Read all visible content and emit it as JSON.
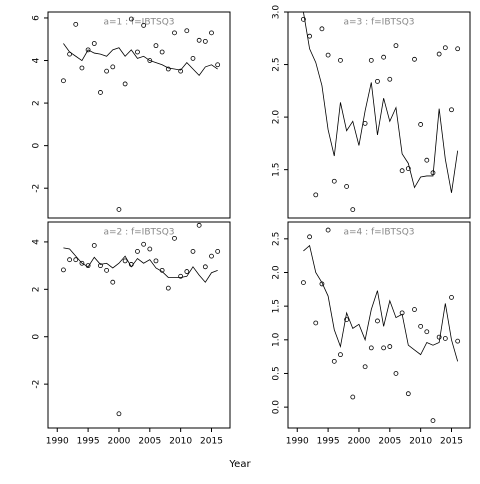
{
  "x_label": "Year",
  "chart_data": [
    {
      "type": "scatter",
      "title": "a=1  :  f=IBTSQ3",
      "xlim": [
        1988.5,
        2018
      ],
      "ylim": [
        -3.4,
        6.28
      ],
      "yticks": [
        -2,
        0,
        2,
        4,
        6
      ],
      "points": {
        "x": [
          1991,
          1992,
          1993,
          1994,
          1995,
          1996,
          1997,
          1998,
          1999,
          2000,
          2001,
          2002,
          2003,
          2004,
          2005,
          2006,
          2007,
          2008,
          2009,
          2010,
          2011,
          2012,
          2013,
          2014,
          2015,
          2016
        ],
        "values": [
          3.05,
          4.3,
          5.7,
          3.65,
          4.5,
          4.8,
          2.5,
          3.5,
          3.7,
          -3.0,
          2.9,
          5.95,
          4.4,
          5.65,
          4.0,
          4.7,
          4.4,
          3.6,
          5.3,
          3.5,
          5.4,
          4.1,
          4.95,
          4.9,
          5.3,
          3.8
        ]
      },
      "fit": {
        "x": [
          1991,
          1992,
          1993,
          1994,
          1995,
          1996,
          1997,
          1998,
          1999,
          2000,
          2001,
          2002,
          2003,
          2004,
          2005,
          2006,
          2007,
          2008,
          2009,
          2010,
          2011,
          2012,
          2013,
          2014,
          2015,
          2016
        ],
        "values": [
          4.8,
          4.4,
          4.2,
          4.0,
          4.5,
          4.35,
          4.3,
          4.2,
          4.5,
          4.6,
          4.2,
          4.5,
          4.1,
          4.2,
          4.0,
          3.9,
          3.8,
          3.65,
          3.6,
          3.55,
          3.9,
          3.6,
          3.3,
          3.7,
          3.8,
          3.6
        ]
      }
    },
    {
      "type": "scatter",
      "title": "a=3  :  f=IBTSQ3",
      "xlim": [
        1988.5,
        2018
      ],
      "ylim": [
        1.04,
        3.0
      ],
      "yticks": [
        1.5,
        {
          "value": 2,
          "label": "2.0"
        },
        2.5,
        {
          "value": 3,
          "label": "3.0"
        }
      ],
      "points": {
        "x": [
          1991,
          1992,
          1993,
          1994,
          1995,
          1996,
          1997,
          1998,
          1999,
          2001,
          2002,
          2003,
          2004,
          2005,
          2006,
          2007,
          2008,
          2009,
          2010,
          2011,
          2012,
          2013,
          2014,
          2015,
          2016
        ],
        "values": [
          2.93,
          2.77,
          1.26,
          2.84,
          2.59,
          1.39,
          2.54,
          1.34,
          1.12,
          1.94,
          2.54,
          2.34,
          2.57,
          2.36,
          2.68,
          1.49,
          1.51,
          2.55,
          1.93,
          1.59,
          1.47,
          2.6,
          2.66,
          2.07,
          2.65
        ]
      },
      "fit": {
        "x": [
          1991,
          1992,
          1993,
          1994,
          1995,
          1996,
          1997,
          1998,
          1999,
          2000,
          2001,
          2002,
          2003,
          2004,
          2005,
          2006,
          2007,
          2008,
          2009,
          2010,
          2011,
          2012,
          2013,
          2014,
          2015,
          2016
        ],
        "values": [
          3.0,
          2.65,
          2.52,
          2.3,
          1.88,
          1.63,
          2.14,
          1.87,
          1.96,
          1.73,
          2.06,
          2.33,
          1.83,
          2.18,
          1.96,
          2.09,
          1.65,
          1.56,
          1.33,
          1.43,
          1.44,
          1.44,
          2.08,
          1.6,
          1.28,
          1.68
        ]
      }
    },
    {
      "type": "scatter",
      "title": "a=2  :  f=IBTSQ3",
      "xlim": [
        1988.5,
        2018
      ],
      "ylim": [
        -3.85,
        4.84
      ],
      "yticks": [
        -2,
        0,
        2,
        4
      ],
      "xticks": [
        1990,
        1995,
        2000,
        2005,
        2010,
        2015
      ],
      "points": {
        "x": [
          1991,
          1992,
          1993,
          1994,
          1995,
          1996,
          1997,
          1998,
          1999,
          2000,
          2001,
          2002,
          2003,
          2004,
          2005,
          2006,
          2007,
          2008,
          2009,
          2010,
          2011,
          2012,
          2013,
          2014,
          2015,
          2016
        ],
        "values": [
          2.82,
          3.25,
          3.25,
          3.1,
          3.0,
          3.85,
          3.0,
          2.8,
          2.3,
          -3.25,
          3.2,
          3.05,
          3.6,
          3.9,
          3.7,
          3.2,
          2.8,
          2.05,
          4.15,
          2.55,
          2.75,
          3.6,
          4.7,
          2.95,
          3.4,
          3.6
        ]
      },
      "fit": {
        "x": [
          1991,
          1992,
          1993,
          1994,
          1995,
          1996,
          1997,
          1998,
          1999,
          2000,
          2001,
          2002,
          2003,
          2004,
          2005,
          2006,
          2007,
          2008,
          2009,
          2010,
          2011,
          2012,
          2013,
          2014,
          2015,
          2016
        ],
        "values": [
          3.75,
          3.7,
          3.4,
          3.1,
          2.95,
          3.35,
          3.05,
          3.1,
          2.9,
          3.1,
          3.4,
          2.95,
          3.3,
          3.1,
          3.25,
          2.9,
          2.75,
          2.5,
          2.5,
          2.5,
          2.55,
          2.95,
          2.6,
          2.3,
          2.7,
          2.8
        ]
      }
    },
    {
      "type": "scatter",
      "title": "a=4  :  f=IBTSQ3",
      "xlim": [
        1988.5,
        2018
      ],
      "ylim": [
        -0.31,
        2.75
      ],
      "yticks": [
        {
          "value": 0,
          "label": "0.0"
        },
        0.5,
        {
          "value": 1,
          "label": "1.0"
        },
        1.5,
        {
          "value": 2,
          "label": "2.0"
        },
        2.5
      ],
      "xticks": [
        1990,
        1995,
        2000,
        2005,
        2010,
        2015
      ],
      "points": {
        "x": [
          1991,
          1992,
          1993,
          1994,
          1995,
          1996,
          1997,
          1998,
          1999,
          2001,
          2002,
          2003,
          2004,
          2005,
          2006,
          2007,
          2008,
          2009,
          2010,
          2011,
          2012,
          2013,
          2014,
          2015,
          2016
        ],
        "values": [
          1.85,
          2.53,
          1.25,
          1.83,
          2.63,
          0.68,
          0.78,
          1.3,
          0.15,
          0.6,
          0.88,
          1.28,
          0.88,
          0.9,
          0.5,
          1.4,
          0.2,
          1.45,
          1.2,
          1.12,
          -0.2,
          1.04,
          1.02,
          1.63,
          0.98
        ]
      },
      "fit": {
        "x": [
          1991,
          1992,
          1993,
          1994,
          1995,
          1996,
          1997,
          1998,
          1999,
          2000,
          2001,
          2002,
          2003,
          2004,
          2005,
          2006,
          2007,
          2008,
          2009,
          2010,
          2011,
          2012,
          2013,
          2014,
          2015,
          2016
        ],
        "values": [
          2.32,
          2.4,
          2.0,
          1.85,
          1.65,
          1.15,
          0.9,
          1.4,
          1.17,
          1.23,
          1.0,
          1.45,
          1.73,
          1.2,
          1.58,
          1.33,
          1.38,
          0.92,
          0.85,
          0.78,
          0.96,
          0.92,
          0.96,
          1.54,
          1.0,
          0.68
        ]
      }
    }
  ]
}
